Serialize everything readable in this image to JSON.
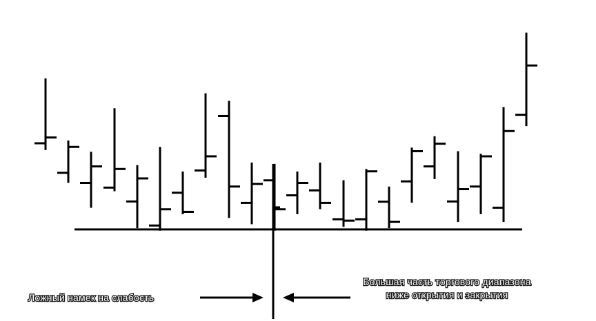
{
  "chart_data": {
    "type": "ohlc",
    "title": "",
    "xlabel": "",
    "ylabel": "",
    "grid": false,
    "ylim": [
      0,
      100
    ],
    "bars": [
      {
        "high": 70.5,
        "low": 37.0,
        "open": 40.2,
        "close": 42.9
      },
      {
        "high": 41.5,
        "low": 21.7,
        "open": 26.4,
        "close": 38.5
      },
      {
        "high": 36.2,
        "low": 10.1,
        "open": 21.7,
        "close": 29.4
      },
      {
        "high": 56.5,
        "low": 17.8,
        "open": 19.5,
        "close": 28.2
      },
      {
        "high": 30.0,
        "low": 0.6,
        "open": 13.0,
        "close": 23.8
      },
      {
        "high": 38.5,
        "low": -0.6,
        "open": 1.8,
        "close": 9.4
      },
      {
        "high": 27.0,
        "low": 7.1,
        "open": 17.1,
        "close": 8.2
      },
      {
        "high": 63.5,
        "low": 24.1,
        "open": 27.5,
        "close": 34.1
      },
      {
        "high": 60.0,
        "low": 5.3,
        "open": 52.9,
        "close": 20.0
      },
      {
        "high": 31.2,
        "low": 2.4,
        "open": 12.4,
        "close": 21.2
      },
      {
        "high": 30.6,
        "low": -0.6,
        "open": 22.9,
        "close": 9.4
      },
      {
        "high": 27.0,
        "low": 7.1,
        "open": 15.9,
        "close": 21.7
      },
      {
        "high": 31.2,
        "low": 9.4,
        "open": 18.2,
        "close": 12.4
      },
      {
        "high": 22.9,
        "low": 1.2,
        "open": 4.7,
        "close": 4.1
      },
      {
        "high": 28.2,
        "low": -0.6,
        "open": 4.7,
        "close": 27.1
      },
      {
        "high": 20.0,
        "low": 0.6,
        "open": 12.9,
        "close": 3.5
      },
      {
        "high": 38.2,
        "low": 12.4,
        "open": 22.4,
        "close": 36.5
      },
      {
        "high": 43.5,
        "low": 23.5,
        "open": 29.4,
        "close": 40.0
      },
      {
        "high": 36.5,
        "low": 3.5,
        "open": 13.0,
        "close": 18.8
      },
      {
        "high": 35.3,
        "low": 7.1,
        "open": 20.0,
        "close": 34.1
      },
      {
        "high": 57.1,
        "low": 3.5,
        "open": 10.1,
        "close": 45.9
      },
      {
        "high": 91.8,
        "low": 48.2,
        "open": 53.5,
        "close": 76.5
      }
    ],
    "annotations": {
      "left": "Ложный намек на слабость",
      "right_line1": "Большая часть торгового диапазона",
      "right_line2": "ниже открытия и закрытия"
    }
  }
}
